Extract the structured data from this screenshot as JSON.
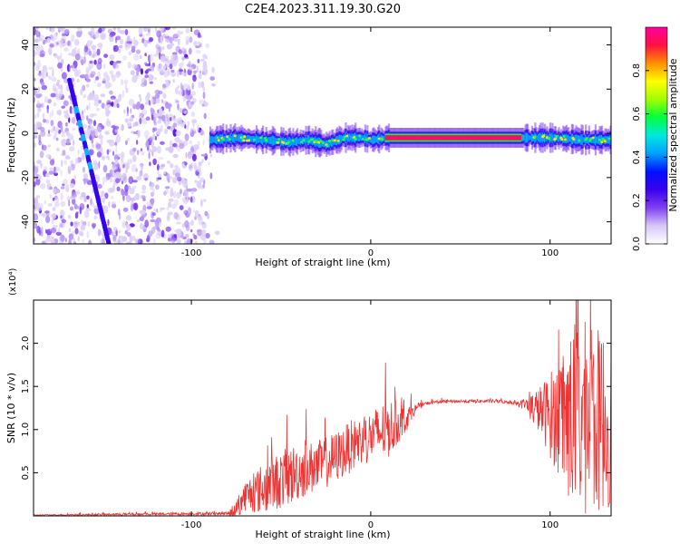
{
  "figure": {
    "title": "C2E4.2023.311.19.30.G20"
  },
  "chart_data": [
    {
      "type": "heatmap",
      "xlabel": "Height of straight line (km)",
      "ylabel": "Frequency (Hz)",
      "xlim": [
        -188,
        134
      ],
      "ylim": [
        -50,
        48
      ],
      "x_ticks": [
        -100,
        0,
        100
      ],
      "y_ticks": [
        -40,
        -20,
        0,
        20,
        40
      ],
      "colorbar": {
        "label": "Normalized spectral amplitude",
        "range": [
          0,
          1
        ],
        "ticks": [
          "0.0",
          "0.2",
          "0.4",
          "0.6",
          "0.8"
        ],
        "colormap": [
          "#ffffff",
          "#d8c8f8",
          "#7f3ff0",
          "#3a00ee",
          "#0010ff",
          "#00a0ff",
          "#00e8e0",
          "#00ff40",
          "#a0ff00",
          "#ffff00",
          "#ff9000",
          "#ff1040",
          "#ff00a0"
        ]
      },
      "carrier_line": {
        "x_start": -90,
        "x_end": 134,
        "frequency": [
          [
            -90,
            -3
          ],
          [
            -75,
            -2
          ],
          [
            -60,
            -3
          ],
          [
            -45,
            -4
          ],
          [
            -35,
            -3
          ],
          [
            -25,
            -5
          ],
          [
            -15,
            -2
          ],
          [
            -5,
            -2
          ],
          [
            0,
            -3
          ],
          [
            10,
            -2
          ],
          [
            30,
            -2
          ],
          [
            60,
            -2
          ],
          [
            80,
            -2
          ],
          [
            100,
            -2
          ],
          [
            120,
            -3
          ],
          [
            134,
            -3
          ]
        ]
      },
      "doppler_track": {
        "start": [
          -168,
          24
        ],
        "end": [
          -146,
          -50
        ]
      },
      "noise_region_x": [
        -188,
        -85
      ]
    },
    {
      "type": "line",
      "xlabel": "Height of straight line (km)",
      "ylabel": "SNR (10 * v/v)",
      "y_multiplier": "(x10⁴)",
      "xlim": [
        -188,
        134
      ],
      "ylim": [
        0,
        2.5
      ],
      "x_ticks": [
        -100,
        0,
        100
      ],
      "y_ticks": [
        "0.5",
        "1.0",
        "1.5",
        "2.0"
      ],
      "series": [
        {
          "color": "#ee3333",
          "envelope": [
            [
              -188,
              0.01
            ],
            [
              -80,
              0.03
            ],
            [
              -75,
              0.1
            ],
            [
              -70,
              0.25
            ],
            [
              -60,
              0.35
            ],
            [
              -50,
              0.45
            ],
            [
              -40,
              0.55
            ],
            [
              -30,
              0.6
            ],
            [
              -20,
              0.7
            ],
            [
              -10,
              0.85
            ],
            [
              0,
              0.95
            ],
            [
              10,
              1.05
            ],
            [
              15,
              1.1
            ],
            [
              20,
              1.15
            ],
            [
              25,
              1.25
            ],
            [
              30,
              1.3
            ],
            [
              35,
              1.32
            ],
            [
              45,
              1.33
            ],
            [
              70,
              1.33
            ],
            [
              85,
              1.3
            ],
            [
              95,
              1.25
            ],
            [
              105,
              1.2
            ],
            [
              115,
              1.25
            ],
            [
              125,
              1.2
            ],
            [
              134,
              1.2
            ]
          ],
          "spread": [
            [
              -188,
              0.005
            ],
            [
              -80,
              0.02
            ],
            [
              -75,
              0.12
            ],
            [
              -60,
              0.3
            ],
            [
              -45,
              0.35
            ],
            [
              -30,
              0.3
            ],
            [
              -15,
              0.3
            ],
            [
              0,
              0.3
            ],
            [
              10,
              0.35
            ],
            [
              20,
              0.15
            ],
            [
              25,
              0.05
            ],
            [
              30,
              0.02
            ],
            [
              80,
              0.02
            ],
            [
              85,
              0.06
            ],
            [
              95,
              0.3
            ],
            [
              105,
              0.7
            ],
            [
              115,
              1.2
            ],
            [
              125,
              1.1
            ],
            [
              134,
              1.0
            ]
          ]
        }
      ]
    }
  ]
}
